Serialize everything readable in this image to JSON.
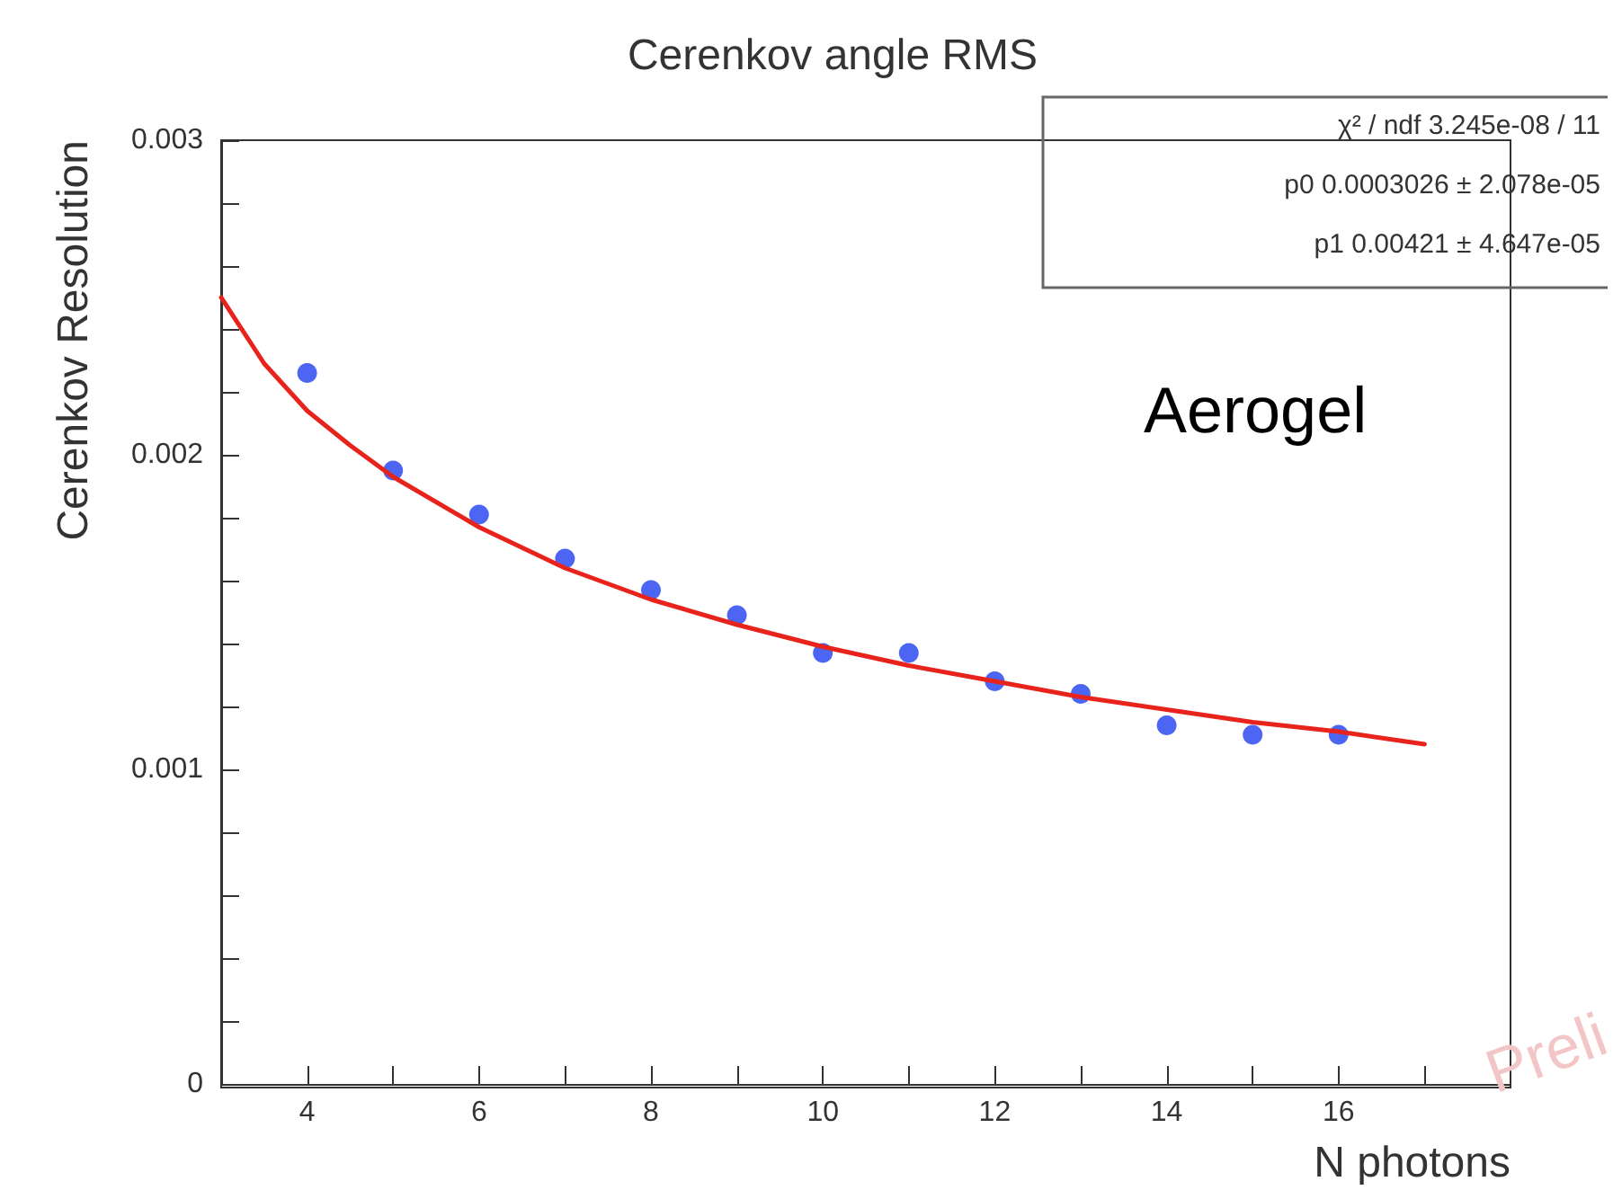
{
  "chart_data": {
    "type": "scatter",
    "title": "Cerenkov angle RMS",
    "xlabel": "N photons",
    "ylabel": "Cerenkov Resolution",
    "x": [
      4,
      5,
      6,
      7,
      8,
      9,
      10,
      11,
      12,
      13,
      14,
      15,
      16
    ],
    "series": [
      {
        "color": "#1f3ff0",
        "values": [
          0.00226,
          0.00195,
          0.00181,
          0.00167,
          0.00157,
          0.00149,
          0.00137,
          0.00137,
          0.00128,
          0.00124,
          0.00114,
          0.00111,
          0.00111
        ]
      },
      {
        "type": "line",
        "marker": "none",
        "color": "#e8231c",
        "x": [
          3,
          3.5,
          4,
          4.5,
          5,
          6,
          7,
          8,
          9,
          10,
          11,
          12,
          13,
          14,
          15,
          16,
          17
        ],
        "values": [
          0.0025,
          0.00229,
          0.00214,
          0.00203,
          0.00193,
          0.00177,
          0.00164,
          0.00154,
          0.00146,
          0.00139,
          0.00133,
          0.00128,
          0.00123,
          0.00119,
          0.00115,
          0.00112,
          0.00108
        ]
      }
    ],
    "xlim": [
      3,
      18
    ],
    "xticks": [
      {
        "value": 3,
        "label": null
      },
      4,
      {
        "value": 5,
        "label": null
      },
      6,
      {
        "value": 7,
        "label": null
      },
      8,
      {
        "value": 9,
        "label": null
      },
      10,
      {
        "value": 11,
        "label": null
      },
      12,
      {
        "value": 13,
        "label": null
      },
      14,
      {
        "value": 15,
        "label": null
      },
      16,
      {
        "value": 17,
        "label": null
      }
    ],
    "ylim": [
      0,
      0.003
    ],
    "yticks": [
      0,
      {
        "value": 0.0002,
        "label": null
      },
      {
        "value": 0.0004,
        "label": null
      },
      {
        "value": 0.0006,
        "label": null
      },
      {
        "value": 0.0008,
        "label": null
      },
      0.001,
      {
        "value": 0.0012,
        "label": null
      },
      {
        "value": 0.0014,
        "label": null
      },
      {
        "value": 0.0016,
        "label": null
      },
      {
        "value": 0.0018,
        "label": null
      },
      0.002,
      {
        "value": 0.0022,
        "label": null
      },
      {
        "value": 0.0024,
        "label": null
      },
      {
        "value": 0.0026,
        "label": null
      },
      {
        "value": 0.0028,
        "label": null
      },
      0.003
    ],
    "annotations": [
      "χ² / ndf 3.245e-08 / 11",
      "p0 0.0003026 ± 2.078e-05",
      "p1 0.00421 ± 4.647e-05",
      "Aerogel",
      "Preli"
    ],
    "grid": false,
    "marker": "circle"
  }
}
